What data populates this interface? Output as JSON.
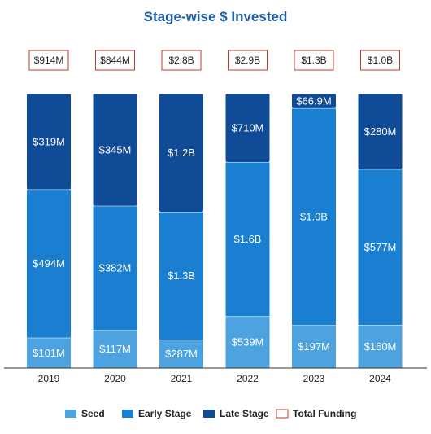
{
  "chart_data": {
    "type": "bar",
    "stacked": true,
    "title": "Stage-wise $ Invested",
    "categories": [
      "2019",
      "2020",
      "2021",
      "2022",
      "2023",
      "2024"
    ],
    "series": [
      {
        "name": "Seed",
        "color": "#4da3e0",
        "values": [
          101,
          117,
          287,
          539,
          197,
          160
        ],
        "labels": [
          "$101M",
          "$117M",
          "$287M",
          "$539M",
          "$197M",
          "$160M"
        ]
      },
      {
        "name": "Early Stage",
        "color": "#1a7fd0",
        "values": [
          494,
          382,
          1300,
          1600,
          1000,
          577
        ],
        "labels": [
          "$494M",
          "$382M",
          "$1.3B",
          "$1.6B",
          "$1.0B",
          "$577M"
        ]
      },
      {
        "name": "Late Stage",
        "color": "#0f4b96",
        "values": [
          319,
          345,
          1200,
          710,
          66.9,
          280
        ],
        "labels": [
          "$319M",
          "$345M",
          "$1.2B",
          "$710M",
          "$66.9M",
          "$280M"
        ]
      }
    ],
    "total_funding": {
      "name": "Total Funding",
      "color": "#c0392b",
      "labels": [
        "$914M",
        "$844M",
        "$2.8B",
        "$2.9B",
        "$1.3B",
        "$1.0B"
      ]
    },
    "normalized_to_100_percent": true,
    "legend_position": "bottom",
    "grid": false
  }
}
